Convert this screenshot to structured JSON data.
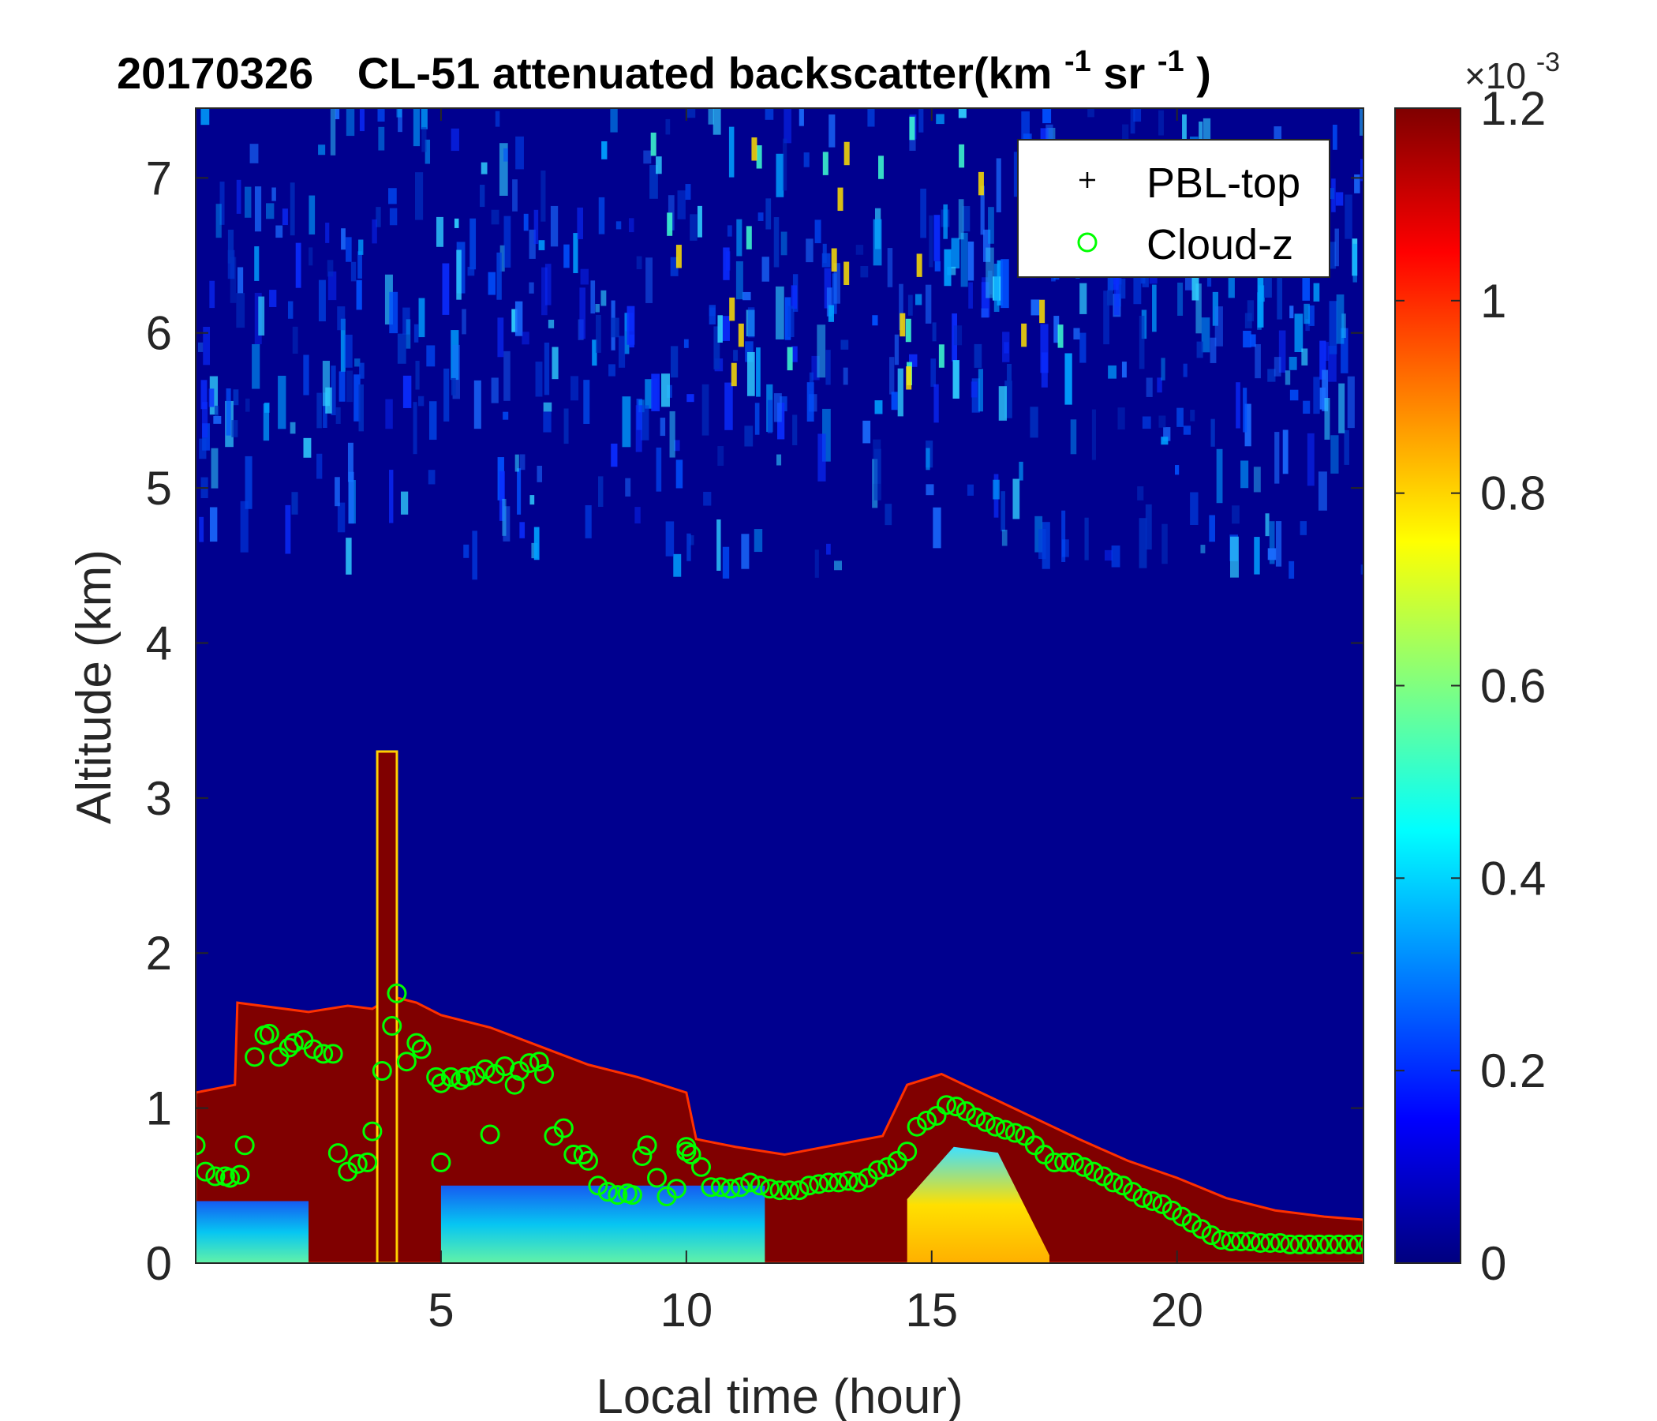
{
  "chart_data": {
    "type": "heatmap",
    "title": {
      "date": "20170326",
      "instrument": "CL-51 attenuated backscatter(km",
      "sup1": "-1",
      "mid": "sr",
      "sup2": "-1",
      "end": ")"
    },
    "xlabel": "Local time (hour)",
    "ylabel": "Altitude (km)",
    "xlim": [
      0,
      23.8
    ],
    "ylim": [
      0,
      7.45
    ],
    "xticks": [
      5,
      10,
      15,
      20
    ],
    "yticks": [
      0,
      1,
      2,
      3,
      4,
      5,
      6,
      7
    ],
    "colormap": "jet",
    "colorbar": {
      "range": [
        0,
        1.2
      ],
      "ticks": [
        "0",
        "0.2",
        "0.4",
        "0.6",
        "0.8",
        "1",
        "1.2"
      ],
      "multiplier_base": "×10",
      "multiplier_exp": "-3"
    },
    "grid": false,
    "legend": {
      "placement": "top-right",
      "entries": [
        {
          "label": "PBL-top",
          "marker": "+",
          "color": "#000000"
        },
        {
          "label": "Cloud-z",
          "marker": "o",
          "color": "#00ff00"
        }
      ]
    },
    "series": [
      {
        "name": "Cloud-z",
        "marker": "o",
        "color": "#00ff00",
        "points": [
          [
            0.0,
            0.76
          ],
          [
            0.2,
            0.59
          ],
          [
            0.4,
            0.56
          ],
          [
            0.6,
            0.56
          ],
          [
            0.7,
            0.55
          ],
          [
            0.9,
            0.57
          ],
          [
            1.0,
            0.76
          ],
          [
            1.2,
            1.33
          ],
          [
            1.4,
            1.47
          ],
          [
            1.5,
            1.48
          ],
          [
            1.7,
            1.33
          ],
          [
            1.9,
            1.39
          ],
          [
            2.0,
            1.42
          ],
          [
            2.2,
            1.44
          ],
          [
            2.4,
            1.38
          ],
          [
            2.6,
            1.35
          ],
          [
            2.8,
            1.35
          ],
          [
            2.9,
            0.71
          ],
          [
            3.1,
            0.59
          ],
          [
            3.3,
            0.64
          ],
          [
            3.5,
            0.65
          ],
          [
            3.6,
            0.85
          ],
          [
            3.8,
            1.24
          ],
          [
            4.0,
            1.53
          ],
          [
            4.1,
            1.74
          ],
          [
            4.3,
            1.3
          ],
          [
            4.5,
            1.42
          ],
          [
            4.6,
            1.38
          ],
          [
            4.9,
            1.2
          ],
          [
            5.0,
            0.65
          ],
          [
            5.0,
            1.16
          ],
          [
            5.2,
            1.2
          ],
          [
            5.4,
            1.18
          ],
          [
            5.5,
            1.2
          ],
          [
            5.7,
            1.21
          ],
          [
            5.9,
            1.25
          ],
          [
            6.0,
            0.83
          ],
          [
            6.1,
            1.22
          ],
          [
            6.3,
            1.27
          ],
          [
            6.5,
            1.15
          ],
          [
            6.6,
            1.24
          ],
          [
            6.8,
            1.29
          ],
          [
            7.0,
            1.3
          ],
          [
            7.1,
            1.22
          ],
          [
            7.3,
            0.82
          ],
          [
            7.5,
            0.87
          ],
          [
            7.7,
            0.7
          ],
          [
            7.9,
            0.7
          ],
          [
            8.0,
            0.66
          ],
          [
            8.2,
            0.5
          ],
          [
            8.4,
            0.46
          ],
          [
            8.6,
            0.44
          ],
          [
            8.8,
            0.45
          ],
          [
            8.9,
            0.44
          ],
          [
            9.1,
            0.69
          ],
          [
            9.2,
            0.76
          ],
          [
            9.4,
            0.55
          ],
          [
            9.6,
            0.43
          ],
          [
            9.8,
            0.48
          ],
          [
            10.0,
            0.72
          ],
          [
            10.0,
            0.75
          ],
          [
            10.1,
            0.7
          ],
          [
            10.3,
            0.62
          ],
          [
            10.5,
            0.49
          ],
          [
            10.7,
            0.49
          ],
          [
            10.9,
            0.48
          ],
          [
            11.1,
            0.49
          ],
          [
            11.3,
            0.52
          ],
          [
            11.5,
            0.5
          ],
          [
            11.7,
            0.48
          ],
          [
            11.9,
            0.47
          ],
          [
            12.1,
            0.47
          ],
          [
            12.3,
            0.47
          ],
          [
            12.5,
            0.5
          ],
          [
            12.7,
            0.51
          ],
          [
            12.9,
            0.52
          ],
          [
            13.1,
            0.52
          ],
          [
            13.3,
            0.53
          ],
          [
            13.5,
            0.52
          ],
          [
            13.7,
            0.55
          ],
          [
            13.9,
            0.6
          ],
          [
            14.1,
            0.62
          ],
          [
            14.3,
            0.66
          ],
          [
            14.5,
            0.72
          ],
          [
            14.7,
            0.88
          ],
          [
            14.9,
            0.92
          ],
          [
            15.1,
            0.95
          ],
          [
            15.3,
            1.02
          ],
          [
            15.5,
            1.01
          ],
          [
            15.7,
            0.98
          ],
          [
            15.9,
            0.94
          ],
          [
            16.1,
            0.91
          ],
          [
            16.3,
            0.88
          ],
          [
            16.5,
            0.86
          ],
          [
            16.7,
            0.84
          ],
          [
            16.9,
            0.82
          ],
          [
            17.1,
            0.76
          ],
          [
            17.3,
            0.7
          ],
          [
            17.5,
            0.65
          ],
          [
            17.7,
            0.65
          ],
          [
            17.9,
            0.65
          ],
          [
            18.1,
            0.62
          ],
          [
            18.3,
            0.59
          ],
          [
            18.5,
            0.56
          ],
          [
            18.7,
            0.52
          ],
          [
            18.9,
            0.5
          ],
          [
            19.1,
            0.46
          ],
          [
            19.3,
            0.42
          ],
          [
            19.5,
            0.4
          ],
          [
            19.7,
            0.38
          ],
          [
            19.9,
            0.34
          ],
          [
            20.1,
            0.3
          ],
          [
            20.3,
            0.26
          ],
          [
            20.5,
            0.22
          ],
          [
            20.7,
            0.18
          ],
          [
            20.9,
            0.15
          ],
          [
            21.1,
            0.14
          ],
          [
            21.3,
            0.14
          ],
          [
            21.5,
            0.14
          ],
          [
            21.7,
            0.13
          ],
          [
            21.9,
            0.13
          ],
          [
            22.1,
            0.13
          ],
          [
            22.3,
            0.12
          ],
          [
            22.5,
            0.12
          ],
          [
            22.7,
            0.12
          ],
          [
            22.9,
            0.12
          ],
          [
            23.1,
            0.12
          ],
          [
            23.3,
            0.12
          ],
          [
            23.5,
            0.12
          ],
          [
            23.7,
            0.12
          ],
          [
            23.9,
            0.12
          ]
        ]
      }
    ],
    "heatmap_features": {
      "boundary_layer_top_km": [
        [
          0.0,
          1.1
        ],
        [
          0.8,
          1.15
        ],
        [
          0.85,
          1.68
        ],
        [
          2.3,
          1.62
        ],
        [
          3.1,
          1.66
        ],
        [
          3.6,
          1.64
        ],
        [
          4.0,
          1.72
        ],
        [
          4.5,
          1.68
        ],
        [
          5.0,
          1.6
        ],
        [
          6.0,
          1.52
        ],
        [
          7.0,
          1.4
        ],
        [
          8.0,
          1.28
        ],
        [
          9.0,
          1.2
        ],
        [
          10.0,
          1.1
        ],
        [
          10.2,
          0.8
        ],
        [
          11.0,
          0.75
        ],
        [
          12.0,
          0.7
        ],
        [
          13.0,
          0.76
        ],
        [
          14.0,
          0.82
        ],
        [
          14.5,
          1.15
        ],
        [
          15.2,
          1.22
        ],
        [
          16.0,
          1.1
        ],
        [
          17.0,
          0.95
        ],
        [
          18.0,
          0.8
        ],
        [
          19.0,
          0.66
        ],
        [
          20.0,
          0.55
        ],
        [
          21.0,
          0.42
        ],
        [
          22.0,
          0.34
        ],
        [
          23.0,
          0.3
        ],
        [
          23.8,
          0.28
        ]
      ],
      "saturated_column": {
        "x": [
          3.7,
          4.1
        ],
        "top_km": 3.3
      },
      "enhanced_aerosol": {
        "x": [
          14.5,
          17.4
        ],
        "peak_km": 0.75,
        "peak_value": 0.8
      },
      "aerosol_layers": [
        {
          "x": [
            0.0,
            2.3
          ],
          "value": 0.4
        },
        {
          "x": [
            5.0,
            11.6
          ],
          "value": 0.5
        }
      ]
    }
  }
}
